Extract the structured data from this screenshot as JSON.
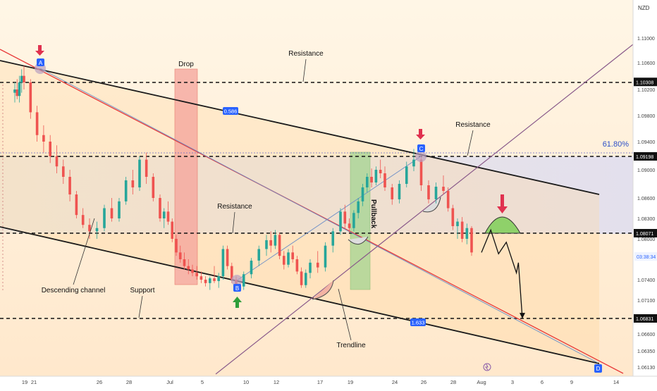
{
  "chart_data": {
    "type": "candlestick",
    "symbol_currency": "NZD",
    "y_ticks": [
      "1.11000",
      "1.10600",
      "1.10300",
      "1.10200",
      "1.09800",
      "1.09400",
      "1.09000",
      "1.08600",
      "1.08300",
      "1.08000",
      "1.07400",
      "1.07100",
      "1.06600",
      "1.06350",
      "1.06130"
    ],
    "x_ticks": [
      {
        "day": 0,
        "label": "19"
      },
      {
        "day": 2,
        "label": "21"
      },
      {
        "day": 7,
        "label": "26"
      },
      {
        "day": 9,
        "label": "28"
      },
      {
        "day": 12,
        "label": "Jul"
      },
      {
        "day": 16,
        "label": "5"
      },
      {
        "day": 21,
        "label": "10"
      },
      {
        "day": 23,
        "label": "12"
      },
      {
        "day": 28,
        "label": "17"
      },
      {
        "day": 30,
        "label": "19"
      },
      {
        "day": 35,
        "label": "24"
      },
      {
        "day": 37,
        "label": "26"
      },
      {
        "day": 39,
        "label": "28"
      },
      {
        "day": 42,
        "label": "Aug"
      },
      {
        "day": 44,
        "label": "3"
      },
      {
        "day": 47,
        "label": "6"
      },
      {
        "day": 50,
        "label": "9"
      },
      {
        "day": 54,
        "label": "14"
      }
    ],
    "price_labels": [
      {
        "value": 1.10308,
        "text": "1.10308"
      },
      {
        "value": 1.09198,
        "text": "1.09198"
      },
      {
        "value": 1.08071,
        "text": "1.08071"
      },
      {
        "value": 1.06831,
        "text": "1.06831"
      }
    ],
    "current_price_label": "03:38:34",
    "fib_level_label": "61.80%",
    "channel_labels": [
      "0.586",
      "1.633"
    ],
    "point_labels": [
      "A",
      "B",
      "C",
      "D"
    ],
    "annotations": [
      {
        "text": "Drop"
      },
      {
        "text": "Resistance"
      },
      {
        "text": "Resistance"
      },
      {
        "text": "Resistance"
      },
      {
        "text": "Descending channel"
      },
      {
        "text": "Support"
      },
      {
        "text": "Trendline"
      },
      {
        "text": "Pullback"
      }
    ],
    "candles": [
      {
        "d": 0,
        "o": 1.1015,
        "h": 1.103,
        "l": 1.1,
        "c": 1.102
      },
      {
        "d": 0.5,
        "o": 1.102,
        "h": 1.1035,
        "l": 1.1005,
        "c": 1.101
      },
      {
        "d": 1,
        "o": 1.101,
        "h": 1.104,
        "l": 1.1,
        "c": 1.103
      },
      {
        "d": 1.5,
        "o": 1.103,
        "h": 1.105,
        "l": 1.1015,
        "c": 1.104
      },
      {
        "d": 2,
        "o": 1.104,
        "h": 1.1055,
        "l": 1.102,
        "c": 1.103
      },
      {
        "d": 2.5,
        "o": 1.103,
        "h": 1.1035,
        "l": 1.0975,
        "c": 1.0985
      },
      {
        "d": 3,
        "o": 1.0985,
        "h": 1.0995,
        "l": 1.094,
        "c": 1.095
      },
      {
        "d": 3.5,
        "o": 1.095,
        "h": 1.0965,
        "l": 1.0925,
        "c": 1.094
      },
      {
        "d": 4,
        "o": 1.094,
        "h": 1.095,
        "l": 1.091,
        "c": 1.092
      },
      {
        "d": 4.5,
        "o": 1.092,
        "h": 1.0935,
        "l": 1.0895,
        "c": 1.0905
      },
      {
        "d": 5,
        "o": 1.0905,
        "h": 1.0915,
        "l": 1.088,
        "c": 1.089
      },
      {
        "d": 5.5,
        "o": 1.089,
        "h": 1.09,
        "l": 1.0855,
        "c": 1.0865
      },
      {
        "d": 6,
        "o": 1.0865,
        "h": 1.087,
        "l": 1.083,
        "c": 1.0835
      },
      {
        "d": 6.5,
        "o": 1.0835,
        "h": 1.0845,
        "l": 1.0815,
        "c": 1.082
      },
      {
        "d": 7,
        "o": 1.082,
        "h": 1.083,
        "l": 1.08,
        "c": 1.081
      },
      {
        "d": 7.5,
        "o": 1.081,
        "h": 1.0825,
        "l": 1.08,
        "c": 1.0815
      },
      {
        "d": 8,
        "o": 1.0815,
        "h": 1.085,
        "l": 1.081,
        "c": 1.0845
      },
      {
        "d": 8.5,
        "o": 1.0845,
        "h": 1.086,
        "l": 1.0825,
        "c": 1.083
      },
      {
        "d": 9,
        "o": 1.083,
        "h": 1.086,
        "l": 1.0825,
        "c": 1.0855
      },
      {
        "d": 9.5,
        "o": 1.0855,
        "h": 1.089,
        "l": 1.085,
        "c": 1.0885
      },
      {
        "d": 10,
        "o": 1.0885,
        "h": 1.09,
        "l": 1.0865,
        "c": 1.0875
      },
      {
        "d": 10.5,
        "o": 1.0875,
        "h": 1.092,
        "l": 1.087,
        "c": 1.0915
      },
      {
        "d": 11,
        "o": 1.0915,
        "h": 1.0925,
        "l": 1.088,
        "c": 1.089
      },
      {
        "d": 11.5,
        "o": 1.089,
        "h": 1.0895,
        "l": 1.0855,
        "c": 1.086
      },
      {
        "d": 12,
        "o": 1.086,
        "h": 1.0865,
        "l": 1.0825,
        "c": 1.083
      },
      {
        "d": 12.5,
        "o": 1.083,
        "h": 1.0845,
        "l": 1.0815,
        "c": 1.084
      },
      {
        "d": 13,
        "o": 1.084,
        "h": 1.0855,
        "l": 1.082,
        "c": 1.0825
      },
      {
        "d": 13.5,
        "o": 1.0825,
        "h": 1.083,
        "l": 1.0795,
        "c": 1.08
      },
      {
        "d": 14,
        "o": 1.08,
        "h": 1.0805,
        "l": 1.0775,
        "c": 1.078
      },
      {
        "d": 14.5,
        "o": 1.078,
        "h": 1.079,
        "l": 1.0765,
        "c": 1.077
      },
      {
        "d": 15,
        "o": 1.077,
        "h": 1.078,
        "l": 1.0755,
        "c": 1.076
      },
      {
        "d": 15.5,
        "o": 1.076,
        "h": 1.077,
        "l": 1.0748,
        "c": 1.0755
      },
      {
        "d": 16,
        "o": 1.0755,
        "h": 1.0762,
        "l": 1.0745,
        "c": 1.075
      },
      {
        "d": 16.5,
        "o": 1.075,
        "h": 1.076,
        "l": 1.074,
        "c": 1.0745
      },
      {
        "d": 17,
        "o": 1.0745,
        "h": 1.0752,
        "l": 1.0735,
        "c": 1.074
      },
      {
        "d": 17.5,
        "o": 1.074,
        "h": 1.0745,
        "l": 1.073,
        "c": 1.0735
      },
      {
        "d": 18,
        "o": 1.0735,
        "h": 1.0745,
        "l": 1.0725,
        "c": 1.0742
      },
      {
        "d": 18.5,
        "o": 1.0742,
        "h": 1.076,
        "l": 1.0735,
        "c": 1.0738
      },
      {
        "d": 19,
        "o": 1.0738,
        "h": 1.075,
        "l": 1.0728,
        "c": 1.0745
      },
      {
        "d": 19.5,
        "o": 1.0745,
        "h": 1.079,
        "l": 1.074,
        "c": 1.0785
      },
      {
        "d": 20,
        "o": 1.0785,
        "h": 1.079,
        "l": 1.0755,
        "c": 1.076
      },
      {
        "d": 20.5,
        "o": 1.076,
        "h": 1.0765,
        "l": 1.0735,
        "c": 1.074
      },
      {
        "d": 21,
        "o": 1.074,
        "h": 1.0745,
        "l": 1.0725,
        "c": 1.073
      },
      {
        "d": 21.5,
        "o": 1.073,
        "h": 1.0752,
        "l": 1.0725,
        "c": 1.0748
      },
      {
        "d": 22,
        "o": 1.0748,
        "h": 1.0772,
        "l": 1.0742,
        "c": 1.0768
      },
      {
        "d": 22.5,
        "o": 1.0768,
        "h": 1.079,
        "l": 1.076,
        "c": 1.0785
      },
      {
        "d": 23,
        "o": 1.0785,
        "h": 1.0805,
        "l": 1.0775,
        "c": 1.0798
      },
      {
        "d": 23.5,
        "o": 1.0798,
        "h": 1.081,
        "l": 1.078,
        "c": 1.079
      },
      {
        "d": 24,
        "o": 1.079,
        "h": 1.0812,
        "l": 1.0785,
        "c": 1.0805
      },
      {
        "d": 24.5,
        "o": 1.0805,
        "h": 1.0808,
        "l": 1.077,
        "c": 1.0775
      },
      {
        "d": 25,
        "o": 1.0775,
        "h": 1.0782,
        "l": 1.0755,
        "c": 1.0762
      },
      {
        "d": 25.5,
        "o": 1.0762,
        "h": 1.0785,
        "l": 1.0758,
        "c": 1.078
      },
      {
        "d": 26,
        "o": 1.078,
        "h": 1.079,
        "l": 1.0765,
        "c": 1.077
      },
      {
        "d": 26.5,
        "o": 1.077,
        "h": 1.0775,
        "l": 1.0748,
        "c": 1.0752
      },
      {
        "d": 27,
        "o": 1.0752,
        "h": 1.0758,
        "l": 1.0728,
        "c": 1.0732
      },
      {
        "d": 27.5,
        "o": 1.0732,
        "h": 1.0755,
        "l": 1.0728,
        "c": 1.075
      },
      {
        "d": 28,
        "o": 1.075,
        "h": 1.077,
        "l": 1.0742,
        "c": 1.0765
      },
      {
        "d": 28.5,
        "o": 1.0765,
        "h": 1.0782,
        "l": 1.075,
        "c": 1.0758
      },
      {
        "d": 29,
        "o": 1.0758,
        "h": 1.0795,
        "l": 1.0752,
        "c": 1.079
      },
      {
        "d": 29.5,
        "o": 1.079,
        "h": 1.0815,
        "l": 1.078,
        "c": 1.081
      },
      {
        "d": 30,
        "o": 1.081,
        "h": 1.0845,
        "l": 1.0805,
        "c": 1.084
      },
      {
        "d": 30.5,
        "o": 1.084,
        "h": 1.085,
        "l": 1.0815,
        "c": 1.0822
      },
      {
        "d": 31,
        "o": 1.0822,
        "h": 1.083,
        "l": 1.0808,
        "c": 1.0815
      },
      {
        "d": 31.5,
        "o": 1.0815,
        "h": 1.0842,
        "l": 1.081,
        "c": 1.0838
      },
      {
        "d": 32,
        "o": 1.0838,
        "h": 1.086,
        "l": 1.083,
        "c": 1.0855
      },
      {
        "d": 32.5,
        "o": 1.0855,
        "h": 1.088,
        "l": 1.0848,
        "c": 1.0875
      },
      {
        "d": 33,
        "o": 1.0875,
        "h": 1.0895,
        "l": 1.0868,
        "c": 1.089
      },
      {
        "d": 33.5,
        "o": 1.089,
        "h": 1.0902,
        "l": 1.0875,
        "c": 1.0882
      },
      {
        "d": 34,
        "o": 1.0882,
        "h": 1.0905,
        "l": 1.0878,
        "c": 1.09
      },
      {
        "d": 34.5,
        "o": 1.09,
        "h": 1.0915,
        "l": 1.0888,
        "c": 1.0895
      },
      {
        "d": 35,
        "o": 1.0895,
        "h": 1.0905,
        "l": 1.087,
        "c": 1.0875
      },
      {
        "d": 35.5,
        "o": 1.0875,
        "h": 1.088,
        "l": 1.085,
        "c": 1.0858
      },
      {
        "d": 36,
        "o": 1.0858,
        "h": 1.0885,
        "l": 1.0852,
        "c": 1.088
      },
      {
        "d": 36.5,
        "o": 1.088,
        "h": 1.0912,
        "l": 1.0875,
        "c": 1.0905
      },
      {
        "d": 37,
        "o": 1.0905,
        "h": 1.093,
        "l": 1.0898,
        "c": 1.0915
      },
      {
        "d": 37.5,
        "o": 1.0915,
        "h": 1.092,
        "l": 1.087,
        "c": 1.0878
      },
      {
        "d": 38,
        "o": 1.0878,
        "h": 1.0885,
        "l": 1.0852,
        "c": 1.0858
      },
      {
        "d": 38.5,
        "o": 1.0858,
        "h": 1.0882,
        "l": 1.0852,
        "c": 1.0876
      },
      {
        "d": 39,
        "o": 1.0876,
        "h": 1.0892,
        "l": 1.0865,
        "c": 1.087
      },
      {
        "d": 39.5,
        "o": 1.087,
        "h": 1.0875,
        "l": 1.084,
        "c": 1.0845
      },
      {
        "d": 40,
        "o": 1.0845,
        "h": 1.085,
        "l": 1.0812,
        "c": 1.0818
      },
      {
        "d": 40.5,
        "o": 1.0818,
        "h": 1.083,
        "l": 1.08,
        "c": 1.0825
      },
      {
        "d": 41,
        "o": 1.0825,
        "h": 1.0832,
        "l": 1.0795,
        "c": 1.08
      },
      {
        "d": 41.5,
        "o": 1.08,
        "h": 1.0822,
        "l": 1.0792,
        "c": 1.0815
      },
      {
        "d": 42,
        "o": 1.0815,
        "h": 1.0818,
        "l": 1.0775,
        "c": 1.078
      }
    ],
    "projection_path": [
      {
        "d": 42.0,
        "p": 1.078
      },
      {
        "d": 42.6,
        "p": 1.0812
      },
      {
        "d": 43.1,
        "p": 1.0778
      },
      {
        "d": 43.6,
        "p": 1.0795
      },
      {
        "d": 44.4,
        "p": 1.075
      },
      {
        "d": 44.6,
        "p": 1.0765
      },
      {
        "d": 45.0,
        "p": 1.0683
      }
    ]
  }
}
